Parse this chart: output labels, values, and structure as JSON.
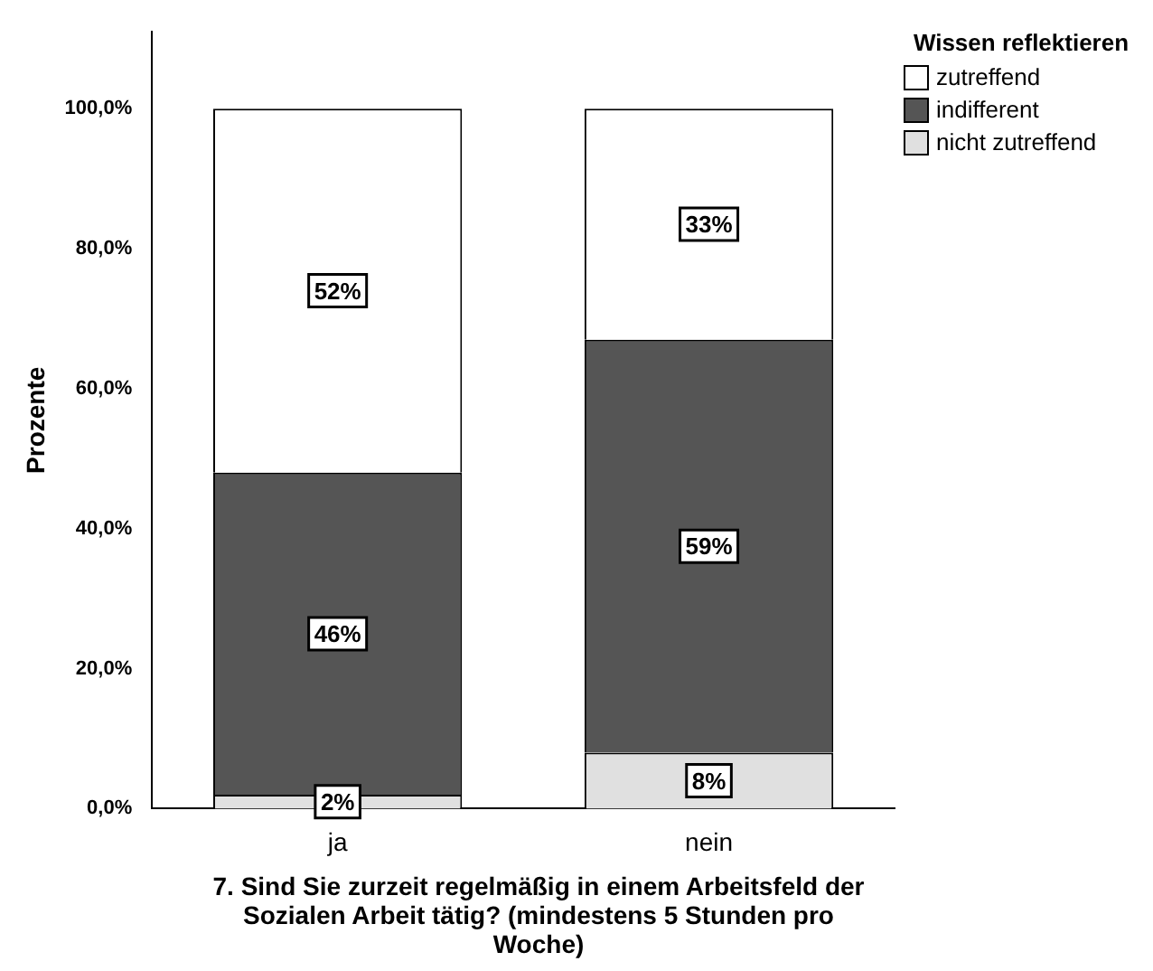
{
  "chart_data": {
    "type": "bar",
    "stacked": true,
    "categories": [
      "ja",
      "nein"
    ],
    "series": [
      {
        "name": "nicht zutreffend",
        "color": "#e0e0e0",
        "values": [
          2,
          8
        ],
        "value_labels": [
          "2%",
          "8%"
        ]
      },
      {
        "name": "indifferent",
        "color": "#555555",
        "values": [
          46,
          59
        ],
        "value_labels": [
          "46%",
          "59%"
        ]
      },
      {
        "name": "zutreffend",
        "color": "#ffffff",
        "values": [
          52,
          33
        ],
        "value_labels": [
          "52%",
          "33%"
        ]
      }
    ],
    "ylim": [
      0,
      111
    ],
    "yticks": [
      {
        "value": 0,
        "label": "0,0%"
      },
      {
        "value": 20,
        "label": "20,0%"
      },
      {
        "value": 40,
        "label": "40,0%"
      },
      {
        "value": 60,
        "label": "60,0%"
      },
      {
        "value": 80,
        "label": "80,0%"
      },
      {
        "value": 100,
        "label": "100,0%"
      }
    ],
    "ylabel": "Prozente",
    "xlabel": "7. Sind Sie zurzeit regelmäßig in einem Arbeitsfeld der Sozialen Arbeit tätig? (mindestens 5 Stunden pro Woche)",
    "legend_title": "Wissen reflektieren",
    "legend": "top right",
    "grid": false
  }
}
